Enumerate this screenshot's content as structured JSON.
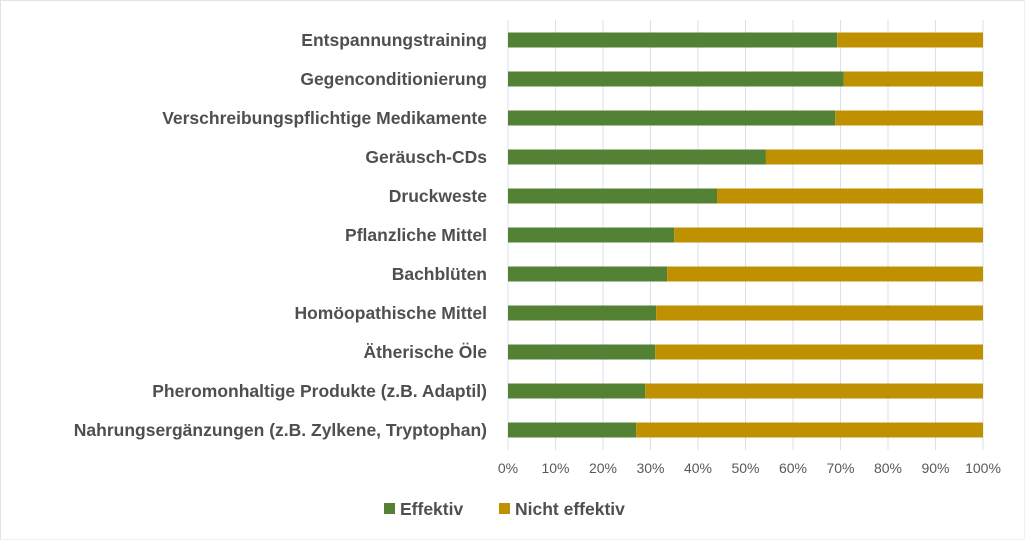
{
  "chart_data": {
    "type": "bar",
    "orientation": "horizontal",
    "stacked": "percent",
    "title": "",
    "xlabel": "",
    "ylabel": "",
    "xlim": [
      0,
      100
    ],
    "grid": true,
    "legend_position": "bottom",
    "categories": [
      "Entspannungstraining",
      "Gegenconditionierung",
      "Verschreibungspflichtige Medikamente",
      "Geräusch-CDs",
      "Druckweste",
      "Pflanzliche Mittel",
      "Bachblüten",
      "Homöopathische Mittel",
      "Ätherische Öle",
      "Pheromonhaltige Produkte (z.B. Adaptil)",
      "Nahrungsergänzungen (z.B. Zylkene, Tryptophan)"
    ],
    "series": [
      {
        "name": "Effektiv",
        "color": "#548235",
        "values": [
          69.3,
          70.7,
          68.9,
          54.3,
          44.0,
          35.0,
          33.5,
          31.2,
          31.0,
          28.9,
          27.0
        ]
      },
      {
        "name": "Nicht effektiv",
        "color": "#bf9000",
        "values": [
          30.7,
          29.3,
          31.1,
          45.7,
          56.0,
          65.0,
          66.5,
          68.8,
          69.0,
          71.1,
          73.0
        ]
      }
    ],
    "x_ticks": [
      "0%",
      "10%",
      "20%",
      "30%",
      "40%",
      "50%",
      "60%",
      "70%",
      "80%",
      "90%",
      "100%"
    ],
    "gridline_color": "#d9dfee"
  }
}
